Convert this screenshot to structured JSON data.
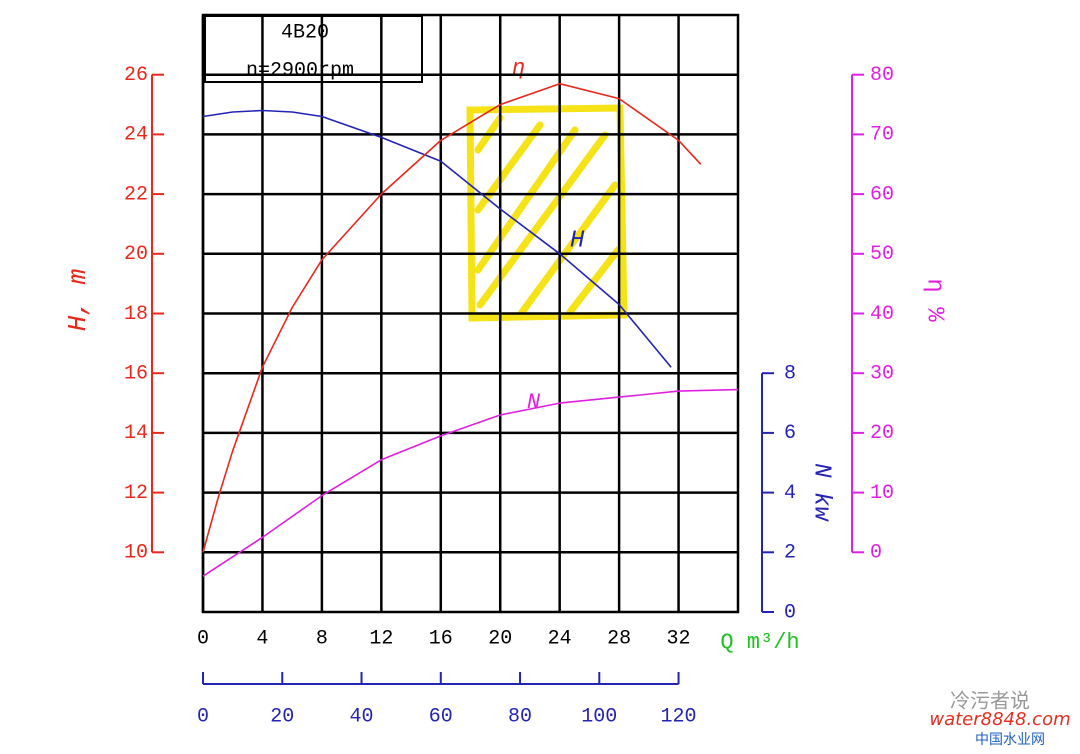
{
  "chart_data": {
    "type": "line",
    "title": "4B20",
    "subtitle": "n=2900rpm",
    "xlabel": "Q m³/h",
    "xlim": [
      0,
      36
    ],
    "xticks": [
      0,
      4,
      8,
      12,
      16,
      20,
      24,
      28,
      32
    ],
    "x2lim": [
      0,
      135
    ],
    "x2ticks": [
      0,
      20,
      40,
      60,
      80,
      100,
      120
    ],
    "ylabel": "H, m",
    "ylim": [
      8,
      28
    ],
    "yticks": [
      10,
      12,
      14,
      16,
      18,
      20,
      22,
      24,
      26
    ],
    "y2label": "N kw",
    "y2lim": [
      0,
      20
    ],
    "y2ticks": [
      0,
      2,
      4,
      6,
      8
    ],
    "y3label": "η %",
    "y3lim": [
      -10,
      90
    ],
    "y3ticks": [
      0,
      10,
      20,
      30,
      40,
      50,
      60,
      70,
      80
    ],
    "grid": true,
    "series": [
      {
        "name": "H",
        "color": "#2424b4",
        "axis": "y",
        "x": [
          0,
          2,
          4,
          6,
          8,
          12,
          16,
          20,
          24,
          28,
          31.5
        ],
        "values": [
          24.6,
          24.75,
          24.8,
          24.75,
          24.6,
          23.9,
          23.1,
          21.5,
          20.0,
          18.3,
          16.2
        ]
      },
      {
        "name": "η",
        "color": "#e8281c",
        "axis": "y3",
        "x": [
          0,
          1,
          2,
          4,
          6,
          8,
          12,
          16,
          20,
          24,
          28,
          32,
          33.5
        ],
        "values": [
          0,
          9,
          17,
          31,
          41,
          49,
          60,
          69,
          75,
          78.5,
          76,
          69,
          65
        ]
      },
      {
        "name": "N",
        "color": "#e020e0",
        "axis": "y2",
        "x": [
          0,
          4,
          8,
          12,
          16,
          20,
          24,
          28,
          32,
          36
        ],
        "values": [
          1.2,
          2.5,
          3.9,
          5.1,
          5.9,
          6.6,
          7.0,
          7.2,
          7.4,
          7.45
        ]
      }
    ]
  },
  "watermark": {
    "name": "冷污者说",
    "site": "water8848.com",
    "site_name": "中国水业网"
  }
}
